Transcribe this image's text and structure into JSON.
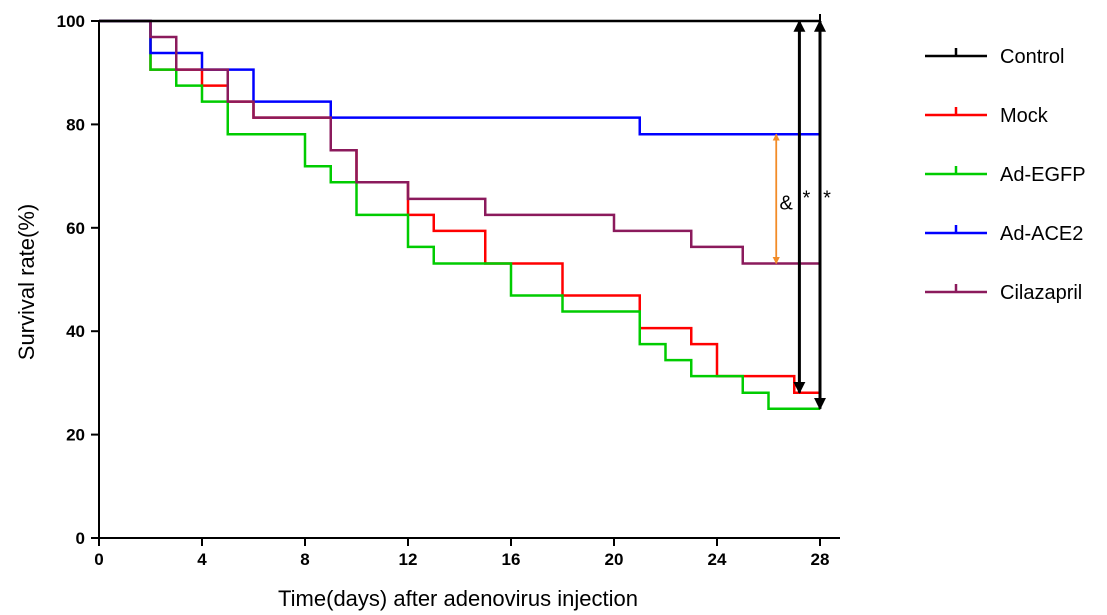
{
  "chart_data": {
    "type": "line",
    "step": true,
    "title": "",
    "xlabel": "Time(days) after adenovirus injection",
    "ylabel": "Survival rate(%)",
    "xlim": [
      0,
      28
    ],
    "ylim": [
      0,
      100
    ],
    "xticks": [
      0,
      4,
      8,
      12,
      16,
      20,
      24,
      28
    ],
    "yticks": [
      0,
      20,
      40,
      60,
      80,
      100
    ],
    "grid": false,
    "legend_position": "right",
    "series": [
      {
        "name": "Control",
        "color": "#000000",
        "x": [
          0,
          28
        ],
        "y": [
          100,
          100
        ]
      },
      {
        "name": "Mock",
        "color": "#ff0000",
        "x": [
          0,
          2,
          4,
          5,
          6,
          9,
          10,
          12,
          13,
          15,
          18,
          21,
          23,
          24,
          27,
          28
        ],
        "y": [
          100,
          90.6,
          87.5,
          84.4,
          81.3,
          75,
          68.8,
          62.5,
          59.4,
          53.1,
          46.9,
          40.6,
          37.5,
          31.3,
          28.1,
          28.1
        ]
      },
      {
        "name": "Ad-EGFP",
        "color": "#00cc00",
        "x": [
          0,
          2,
          3,
          4,
          5,
          8,
          9,
          10,
          12,
          13,
          16,
          18,
          21,
          22,
          23,
          25,
          26,
          28
        ],
        "y": [
          100,
          90.6,
          87.5,
          84.4,
          78.1,
          71.9,
          68.8,
          62.5,
          56.3,
          53.1,
          46.9,
          43.8,
          37.5,
          34.4,
          31.3,
          28.1,
          25,
          25
        ]
      },
      {
        "name": "Ad-ACE2",
        "color": "#0000ff",
        "x": [
          0,
          2,
          4,
          6,
          9,
          21,
          28
        ],
        "y": [
          100,
          93.8,
          90.6,
          84.4,
          81.3,
          78.1,
          78.1
        ]
      },
      {
        "name": "Cilazapril",
        "color": "#8b1a5c",
        "x": [
          0,
          2,
          3,
          5,
          6,
          9,
          10,
          12,
          15,
          20,
          23,
          25,
          28
        ],
        "y": [
          100,
          96.9,
          90.6,
          84.4,
          81.3,
          75,
          68.8,
          65.6,
          62.5,
          59.4,
          56.3,
          53.1,
          53.1
        ]
      }
    ],
    "annotations": [
      {
        "label": "&",
        "color": "#f28c28",
        "x": 26.3,
        "y_from": 53.1,
        "y_to": 78.1
      },
      {
        "label": "*",
        "color": "#000000",
        "x": 27.2,
        "y_from": 28.1,
        "y_to": 100
      },
      {
        "label": "*",
        "color": "#000000",
        "x": 28,
        "y_from": 25,
        "y_to": 100
      }
    ]
  }
}
